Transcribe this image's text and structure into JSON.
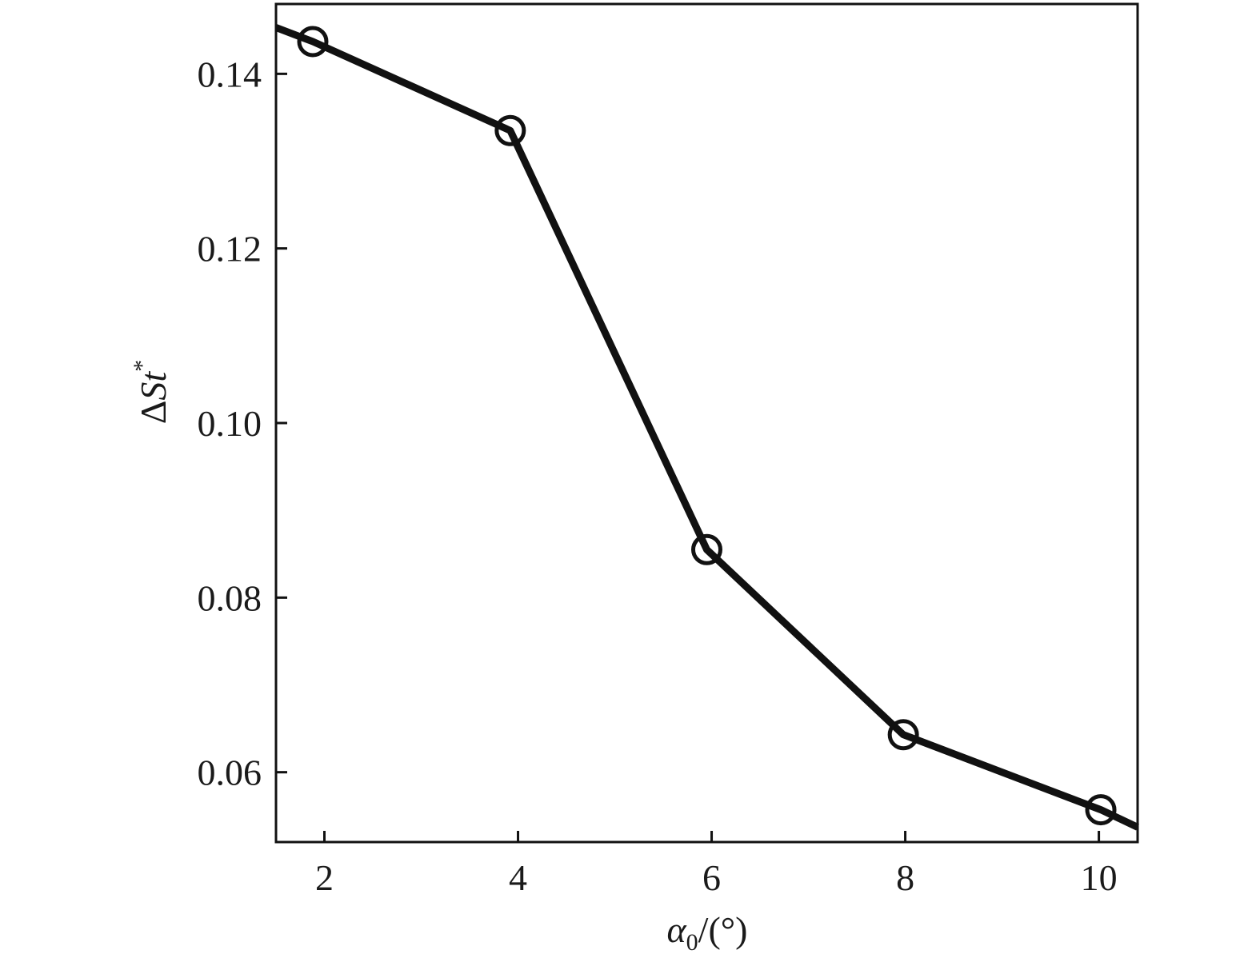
{
  "chart_data": {
    "type": "line",
    "xlabel": {
      "symbol": "α",
      "subscript": "0",
      "unit": "/(°)"
    },
    "ylabel": {
      "prefix": "Δ",
      "symbol": "St",
      "superscript": "*"
    },
    "xlim": [
      1.5,
      10.4
    ],
    "ylim": [
      0.052,
      0.148
    ],
    "x_ticks": [
      2,
      4,
      6,
      8,
      10
    ],
    "x_tick_labels": [
      "2",
      "4",
      "6",
      "8",
      "10"
    ],
    "y_ticks": [
      0.06,
      0.08,
      0.1,
      0.12,
      0.14
    ],
    "y_tick_labels": [
      "0.06",
      "0.08",
      "0.10",
      "0.12",
      "0.14"
    ],
    "grid": false,
    "legend": false,
    "series": [
      {
        "marker": "open-circle",
        "color": "#111111",
        "x": [
          1.88,
          3.92,
          5.95,
          7.98,
          10.02
        ],
        "y": [
          0.1437,
          0.1335,
          0.0855,
          0.0643,
          0.0557
        ],
        "line_extends_to_axes": {
          "start_y": 0.1453,
          "end_y": 0.0537
        }
      }
    ]
  }
}
